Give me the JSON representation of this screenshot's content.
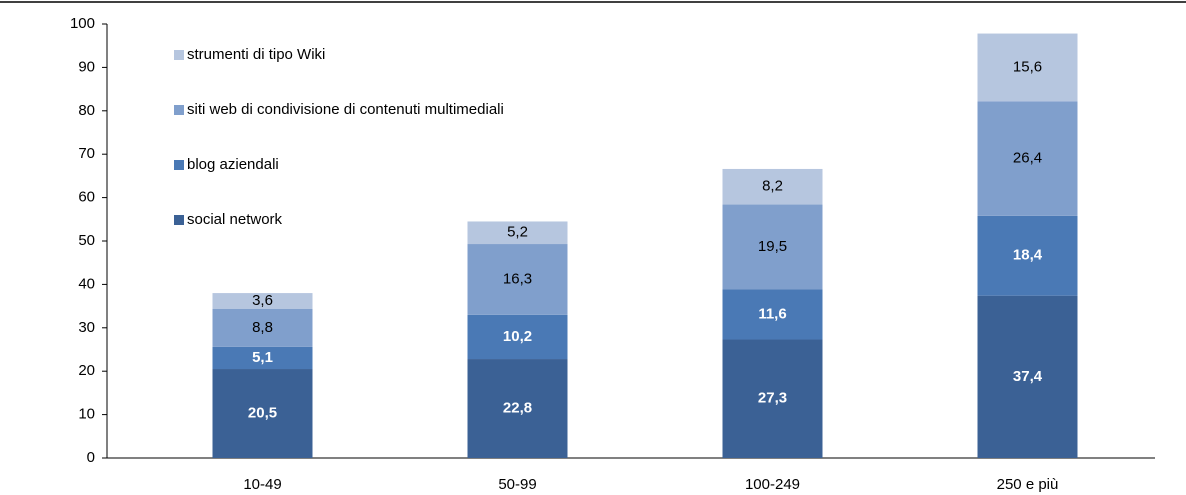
{
  "chart_data": {
    "type": "stacked_bar",
    "categories": [
      "10-49",
      "50-99",
      "100-249",
      "250 e più"
    ],
    "series": [
      {
        "name": "social network",
        "color": "#3b6195",
        "label_color": "#ffffff",
        "label_bold": true,
        "values": [
          20.5,
          22.8,
          27.3,
          37.4
        ],
        "value_labels": [
          "20,5",
          "22,8",
          "27,3",
          "37,4"
        ]
      },
      {
        "name": "blog aziendali",
        "color": "#4a79b5",
        "label_color": "#ffffff",
        "label_bold": true,
        "values": [
          5.1,
          10.2,
          11.6,
          18.4
        ],
        "value_labels": [
          "5,1",
          "10,2",
          "11,6",
          "18,4"
        ]
      },
      {
        "name": "siti web di condivisione di contenuti multimediali",
        "color": "#809fcc",
        "label_color": "#000000",
        "label_bold": false,
        "values": [
          8.8,
          16.3,
          19.5,
          26.4
        ],
        "value_labels": [
          "8,8",
          "16,3",
          "19,5",
          "26,4"
        ]
      },
      {
        "name": "strumenti di tipo Wiki",
        "color": "#b6c6df",
        "label_color": "#000000",
        "label_bold": false,
        "values": [
          3.6,
          5.2,
          8.2,
          15.6
        ],
        "value_labels": [
          "3,6",
          "5,2",
          "8,2",
          "15,6"
        ]
      }
    ],
    "ylim": [
      0,
      100
    ],
    "yticks": [
      0,
      10,
      20,
      30,
      40,
      50,
      60,
      70,
      80,
      90,
      100
    ],
    "legend": "upper left"
  }
}
